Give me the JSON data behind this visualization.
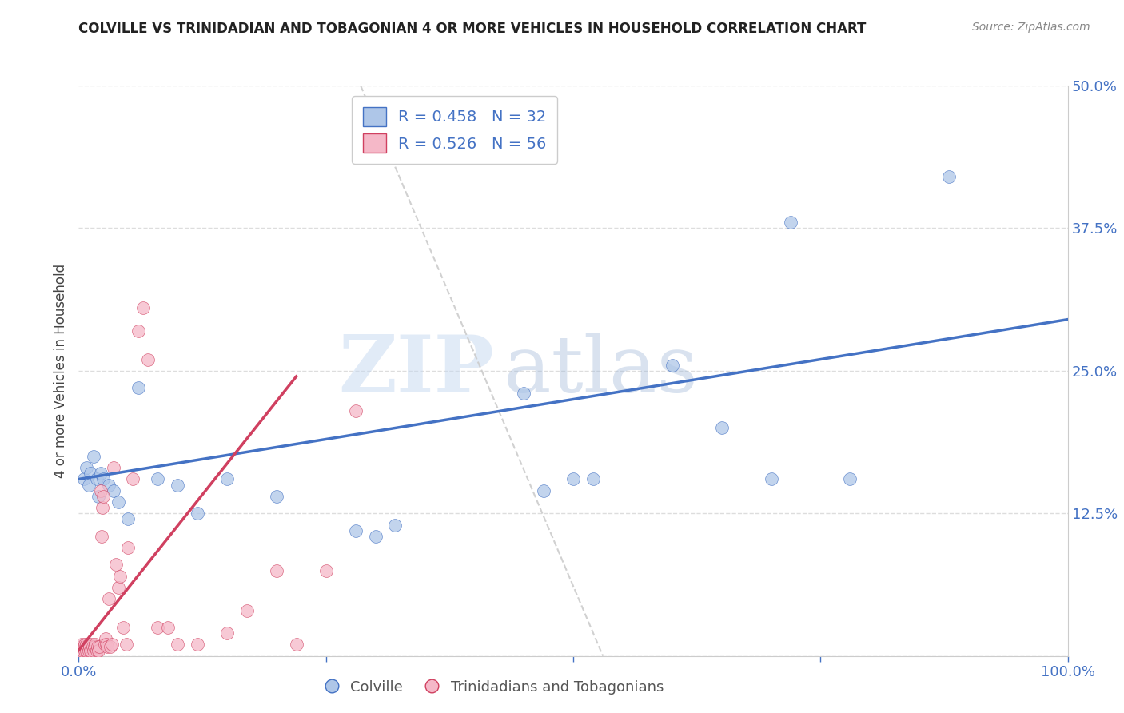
{
  "title": "COLVILLE VS TRINIDADIAN AND TOBAGONIAN 4 OR MORE VEHICLES IN HOUSEHOLD CORRELATION CHART",
  "source": "Source: ZipAtlas.com",
  "ylabel": "4 or more Vehicles in Household",
  "watermark_zip": "ZIP",
  "watermark_atlas": "atlas",
  "colville_R": 0.458,
  "colville_N": 32,
  "trini_R": 0.526,
  "trini_N": 56,
  "colville_color": "#aec6e8",
  "trini_color": "#f5b8c8",
  "colville_line_color": "#4472c4",
  "trini_line_color": "#d04060",
  "ref_line_color": "#cccccc",
  "xlim": [
    0.0,
    1.0
  ],
  "ylim": [
    0.0,
    0.5
  ],
  "xticks": [
    0.0,
    0.25,
    0.5,
    0.75,
    1.0
  ],
  "yticks": [
    0.0,
    0.125,
    0.25,
    0.375,
    0.5
  ],
  "colville_x": [
    0.005,
    0.008,
    0.01,
    0.012,
    0.015,
    0.018,
    0.02,
    0.022,
    0.025,
    0.03,
    0.035,
    0.04,
    0.05,
    0.06,
    0.08,
    0.1,
    0.12,
    0.15,
    0.2,
    0.28,
    0.3,
    0.32,
    0.45,
    0.47,
    0.5,
    0.52,
    0.6,
    0.65,
    0.7,
    0.72,
    0.78,
    0.88
  ],
  "colville_y": [
    0.155,
    0.165,
    0.15,
    0.16,
    0.175,
    0.155,
    0.14,
    0.16,
    0.155,
    0.15,
    0.145,
    0.135,
    0.12,
    0.235,
    0.155,
    0.15,
    0.125,
    0.155,
    0.14,
    0.11,
    0.105,
    0.115,
    0.23,
    0.145,
    0.155,
    0.155,
    0.255,
    0.2,
    0.155,
    0.38,
    0.155,
    0.42
  ],
  "trini_x": [
    0.001,
    0.002,
    0.003,
    0.004,
    0.005,
    0.006,
    0.006,
    0.007,
    0.008,
    0.008,
    0.009,
    0.01,
    0.01,
    0.011,
    0.012,
    0.013,
    0.014,
    0.015,
    0.016,
    0.017,
    0.018,
    0.019,
    0.02,
    0.021,
    0.022,
    0.023,
    0.024,
    0.025,
    0.026,
    0.027,
    0.028,
    0.029,
    0.03,
    0.032,
    0.034,
    0.035,
    0.038,
    0.04,
    0.042,
    0.045,
    0.048,
    0.05,
    0.055,
    0.06,
    0.065,
    0.07,
    0.08,
    0.09,
    0.1,
    0.12,
    0.15,
    0.17,
    0.2,
    0.22,
    0.25,
    0.28
  ],
  "trini_y": [
    0.005,
    0.008,
    0.01,
    0.005,
    0.008,
    0.005,
    0.01,
    0.008,
    0.005,
    0.01,
    0.008,
    0.005,
    0.01,
    0.008,
    0.005,
    0.01,
    0.008,
    0.005,
    0.008,
    0.01,
    0.005,
    0.008,
    0.005,
    0.008,
    0.145,
    0.105,
    0.13,
    0.14,
    0.01,
    0.015,
    0.01,
    0.008,
    0.05,
    0.008,
    0.01,
    0.165,
    0.08,
    0.06,
    0.07,
    0.025,
    0.01,
    0.095,
    0.155,
    0.285,
    0.305,
    0.26,
    0.025,
    0.025,
    0.01,
    0.01,
    0.02,
    0.04,
    0.075,
    0.01,
    0.075,
    0.215
  ],
  "blue_line_x0": 0.0,
  "blue_line_y0": 0.155,
  "blue_line_x1": 1.0,
  "blue_line_y1": 0.295,
  "pink_line_x0": 0.0,
  "pink_line_y0": 0.005,
  "pink_line_x1": 0.22,
  "pink_line_y1": 0.245,
  "ref_line_x0": 0.285,
  "ref_line_y0": 0.5,
  "ref_line_x1": 0.53,
  "ref_line_y1": 0.47,
  "background_color": "#ffffff",
  "grid_color": "#dddddd",
  "tick_color": "#4472c4",
  "legend_label_color": "#4472c4"
}
